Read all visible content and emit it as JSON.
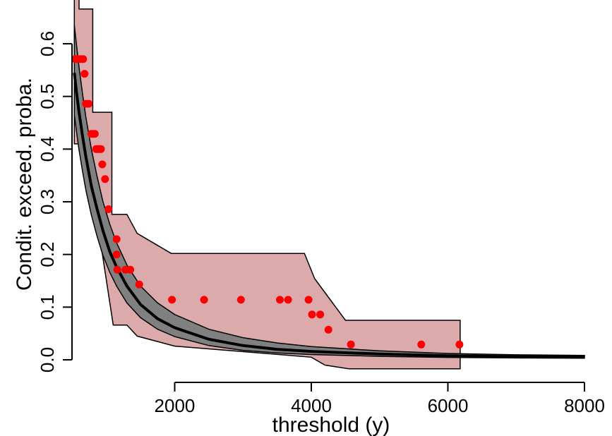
{
  "chart_data": {
    "type": "scatter",
    "title": "",
    "xlabel": "threshold (y)",
    "ylabel": "Condit. exceed. proba.",
    "xlim": [
      300,
      8000
    ],
    "ylim": [
      0,
      0.6
    ],
    "x_ticks": [
      2000,
      4000,
      6000,
      8000
    ],
    "y_ticks": [
      0.0,
      0.1,
      0.2,
      0.3,
      0.4,
      0.5,
      0.6
    ],
    "x_tick_labels": [
      "2000",
      "4000",
      "6000",
      "8000"
    ],
    "y_tick_labels": [
      "0.0",
      "0.1",
      "0.2",
      "0.3",
      "0.4",
      "0.5",
      "0.6"
    ],
    "grid": false,
    "colors": {
      "empirical_points": "#ff0000",
      "empirical_band_fill": "#dcaaaa",
      "model_band_fill": "#808080",
      "model_line": "#000000"
    },
    "empirical_band": {
      "upper": [
        [
          530,
          0.75
        ],
        [
          600,
          0.75
        ],
        [
          600,
          0.666
        ],
        [
          800,
          0.666
        ],
        [
          800,
          0.47
        ],
        [
          1080,
          0.47
        ],
        [
          1080,
          0.276
        ],
        [
          1300,
          0.276
        ],
        [
          1450,
          0.24
        ],
        [
          1950,
          0.202
        ],
        [
          3900,
          0.202
        ],
        [
          4050,
          0.154
        ],
        [
          4500,
          0.075
        ],
        [
          6180,
          0.075
        ]
      ],
      "lower": [
        [
          6180,
          -0.017
        ],
        [
          4550,
          -0.017
        ],
        [
          4200,
          -0.01
        ],
        [
          4000,
          0.005
        ],
        [
          2000,
          0.026
        ],
        [
          1450,
          0.045
        ],
        [
          1300,
          0.066
        ],
        [
          1100,
          0.066
        ],
        [
          900,
          0.235
        ],
        [
          600,
          0.41
        ],
        [
          530,
          0.41
        ]
      ]
    },
    "model_band": {
      "x": [
        530,
        560,
        600,
        650,
        700,
        780,
        860,
        950,
        1050,
        1150,
        1300,
        1500,
        1750,
        2000,
        2500,
        3000,
        3500,
        4000,
        5000,
        6000,
        7000,
        8000
      ],
      "upper": [
        0.635,
        0.6,
        0.555,
        0.505,
        0.46,
        0.4,
        0.35,
        0.3,
        0.257,
        0.222,
        0.18,
        0.14,
        0.108,
        0.086,
        0.058,
        0.042,
        0.032,
        0.025,
        0.017,
        0.012,
        0.0095,
        0.0085
      ],
      "lower": [
        0.465,
        0.435,
        0.398,
        0.358,
        0.322,
        0.275,
        0.236,
        0.198,
        0.166,
        0.14,
        0.108,
        0.08,
        0.058,
        0.044,
        0.027,
        0.018,
        0.013,
        0.01,
        0.0065,
        0.0045,
        0.0035,
        0.003
      ]
    },
    "model_line": {
      "x": [
        530,
        560,
        600,
        650,
        700,
        780,
        860,
        950,
        1050,
        1150,
        1300,
        1500,
        1750,
        2000,
        2500,
        3000,
        3500,
        4000,
        5000,
        6000,
        7000,
        8000
      ],
      "y": [
        0.545,
        0.51,
        0.47,
        0.425,
        0.385,
        0.33,
        0.288,
        0.245,
        0.205,
        0.176,
        0.14,
        0.105,
        0.078,
        0.061,
        0.039,
        0.027,
        0.02,
        0.016,
        0.011,
        0.0078,
        0.006,
        0.005
      ]
    },
    "points": {
      "x": [
        540,
        580,
        620,
        660,
        680,
        700,
        740,
        780,
        800,
        830,
        850,
        880,
        900,
        920,
        940,
        980,
        1030,
        1150,
        1150,
        1160,
        1280,
        1350,
        1480,
        1960,
        2430,
        2970,
        3540,
        3660,
        3960,
        4010,
        4130,
        4250,
        4580,
        5610,
        6170
      ],
      "y": [
        0.571,
        0.571,
        0.571,
        0.571,
        0.543,
        0.486,
        0.486,
        0.429,
        0.429,
        0.429,
        0.4,
        0.4,
        0.4,
        0.4,
        0.371,
        0.343,
        0.286,
        0.229,
        0.2,
        0.171,
        0.171,
        0.171,
        0.143,
        0.114,
        0.114,
        0.114,
        0.114,
        0.114,
        0.114,
        0.086,
        0.086,
        0.057,
        0.029,
        0.029,
        0.029
      ]
    }
  }
}
